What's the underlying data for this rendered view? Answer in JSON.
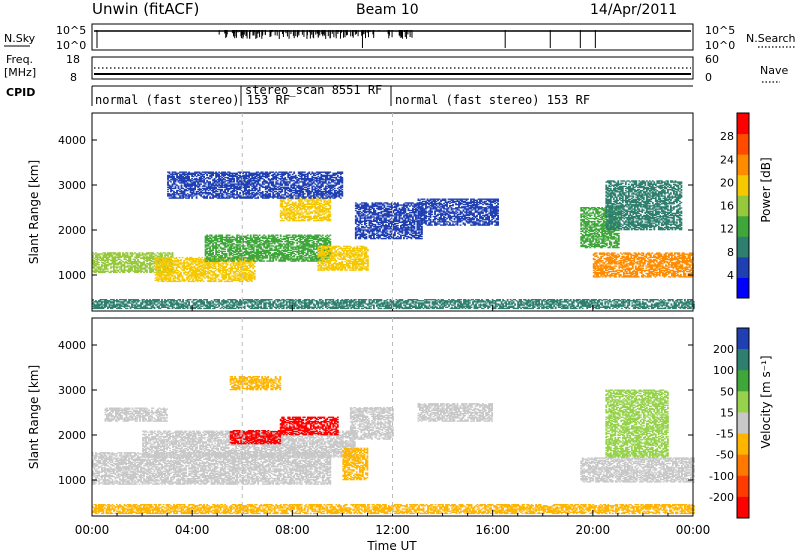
{
  "header": {
    "title": "Unwin (fitACF)",
    "beam": "Beam 10",
    "date": "14/Apr/2011"
  },
  "nsky_panel": {
    "left_label": "N.Sky",
    "right_label": "N.Search",
    "tick_top": "10^5",
    "tick_bottom": "10^0"
  },
  "freq_panel": {
    "left_label_top": "Freq.",
    "left_label_unit": "[MHz]",
    "left_ticks": [
      "18",
      "8"
    ],
    "right_label": "Nave",
    "right_ticks": [
      "60",
      "0"
    ]
  },
  "cpid_panel": {
    "label": "CPID",
    "segments": [
      {
        "start": 0,
        "end": 6,
        "text": "normal (fast stereo) 153 RF"
      },
      {
        "start": 6,
        "end": 12,
        "text": "stereo_scan 8551 RF"
      },
      {
        "start": 12,
        "end": 24,
        "text": "normal (fast stereo) 153 RF"
      }
    ]
  },
  "chart_data": [
    {
      "type": "heatmap",
      "name": "power",
      "ylabel": "Slant Range [km]",
      "yticks": [
        1000,
        2000,
        3000,
        4000
      ],
      "ylim": [
        200,
        4600
      ],
      "xlim": [
        0,
        24
      ],
      "colorbar": {
        "label": "Power [dB]",
        "ticks": [
          4,
          8,
          12,
          16,
          20,
          24,
          28
        ],
        "colors": [
          "#0000ff",
          "#1f3fb3",
          "#2e7f6e",
          "#3fa63a",
          "#96c83c",
          "#f5c800",
          "#ff8c00",
          "#ff4a00",
          "#ff0000"
        ],
        "range": [
          0,
          32
        ]
      },
      "regions": [
        {
          "t0": 0.0,
          "t1": 3.2,
          "r0": 1050,
          "r1": 1500,
          "level": 16
        },
        {
          "t0": 2.5,
          "t1": 6.5,
          "r0": 850,
          "r1": 1400,
          "level": 20
        },
        {
          "t0": 4.5,
          "t1": 9.5,
          "r0": 1300,
          "r1": 1900,
          "level": 14
        },
        {
          "t0": 9.0,
          "t1": 11.0,
          "r0": 1100,
          "r1": 1650,
          "level": 18
        },
        {
          "t0": 7.5,
          "t1": 9.5,
          "r0": 2200,
          "r1": 2700,
          "level": 19
        },
        {
          "t0": 3.0,
          "t1": 10.0,
          "r0": 2700,
          "r1": 3300,
          "level": 6
        },
        {
          "t0": 10.5,
          "t1": 13.2,
          "r0": 1800,
          "r1": 2600,
          "level": 6
        },
        {
          "t0": 13.0,
          "t1": 16.2,
          "r0": 2100,
          "r1": 2700,
          "level": 6
        },
        {
          "t0": 19.5,
          "t1": 21.0,
          "r0": 1600,
          "r1": 2500,
          "level": 12
        },
        {
          "t0": 20.0,
          "t1": 24.0,
          "r0": 950,
          "r1": 1500,
          "level": 22
        },
        {
          "t0": 20.5,
          "t1": 23.5,
          "r0": 2000,
          "r1": 3100,
          "level": 8
        },
        {
          "t0": 0.0,
          "t1": 24.0,
          "r0": 250,
          "r1": 450,
          "level": 10
        }
      ]
    },
    {
      "type": "heatmap",
      "name": "velocity",
      "ylabel": "Slant Range [km]",
      "yticks": [
        1000,
        2000,
        3000,
        4000
      ],
      "ylim": [
        200,
        4600
      ],
      "xlim": [
        0,
        24
      ],
      "xticks": [
        "00:00",
        "04:00",
        "08:00",
        "12:00",
        "16:00",
        "20:00",
        "00:00"
      ],
      "xlabel": "Time UT",
      "colorbar": {
        "label": "Velocity [m s⁻¹]",
        "ticks": [
          "200",
          "100",
          "50",
          "15",
          "-15",
          "-50",
          "-100",
          "-200"
        ],
        "colors": [
          "#1f3fb3",
          "#2e7f6e",
          "#3fa63a",
          "#96d24b",
          "#c8c8c8",
          "#ffb400",
          "#ff7800",
          "#ff3c00",
          "#ff0000"
        ]
      },
      "regions": [
        {
          "t0": 0.0,
          "t1": 9.5,
          "r0": 900,
          "r1": 1600,
          "level": "-15"
        },
        {
          "t0": 2.0,
          "t1": 10.5,
          "r0": 1500,
          "r1": 2100,
          "level": "-15"
        },
        {
          "t0": 0.5,
          "t1": 3.0,
          "r0": 2300,
          "r1": 2600,
          "level": "-15"
        },
        {
          "t0": 7.5,
          "t1": 9.8,
          "r0": 2000,
          "r1": 2400,
          "level": "-200"
        },
        {
          "t0": 5.5,
          "t1": 7.5,
          "r0": 1800,
          "r1": 2100,
          "level": "-200"
        },
        {
          "t0": 10.0,
          "t1": 11.0,
          "r0": 1000,
          "r1": 1700,
          "level": "-50"
        },
        {
          "t0": 5.5,
          "t1": 7.5,
          "r0": 3000,
          "r1": 3300,
          "level": "-50"
        },
        {
          "t0": 10.3,
          "t1": 12.0,
          "r0": 1900,
          "r1": 2600,
          "level": "-15"
        },
        {
          "t0": 13.0,
          "t1": 16.0,
          "r0": 2300,
          "r1": 2700,
          "level": "-15"
        },
        {
          "t0": 19.5,
          "t1": 24.0,
          "r0": 950,
          "r1": 1500,
          "level": "-15"
        },
        {
          "t0": 20.5,
          "t1": 23.0,
          "r0": 1500,
          "r1": 3000,
          "level": "15"
        },
        {
          "t0": 0.0,
          "t1": 24.0,
          "r0": 250,
          "r1": 450,
          "level": "-50"
        }
      ]
    }
  ]
}
